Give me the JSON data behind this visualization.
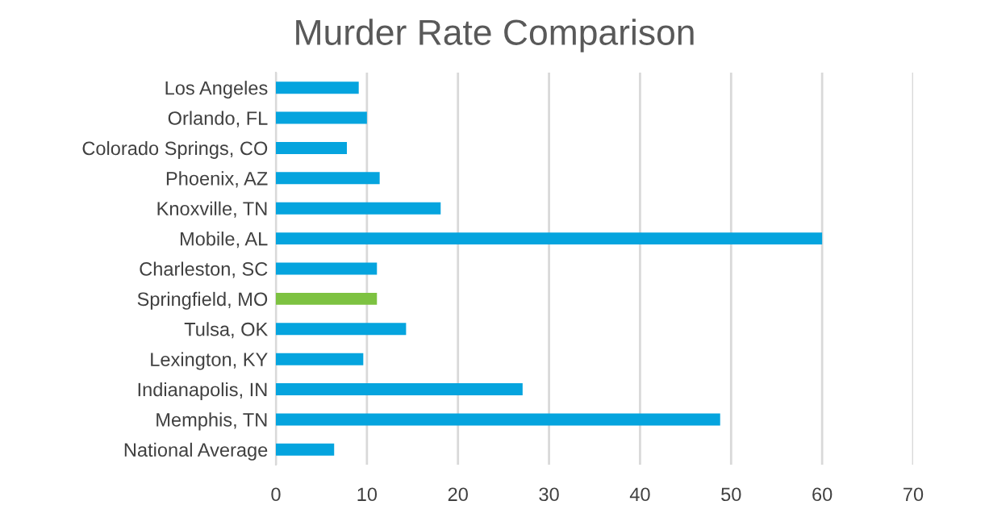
{
  "chart_data": {
    "type": "bar",
    "orientation": "horizontal",
    "title": "Murder Rate Comparison",
    "categories": [
      "Los Angeles",
      "Orlando, FL",
      "Colorado Springs, CO",
      "Phoenix, AZ",
      "Knoxville, TN",
      "Mobile, AL",
      "Charleston, SC",
      "Springfield, MO",
      "Tulsa, OK",
      "Lexington, KY",
      "Indianapolis, IN",
      "Memphis, TN",
      "National Average"
    ],
    "values": [
      9.1,
      10.0,
      7.8,
      11.4,
      18.1,
      60.0,
      11.1,
      11.1,
      14.3,
      9.6,
      27.1,
      48.8,
      6.4
    ],
    "colors": [
      "#05a4de",
      "#05a4de",
      "#05a4de",
      "#05a4de",
      "#05a4de",
      "#05a4de",
      "#05a4de",
      "#7dc241",
      "#05a4de",
      "#05a4de",
      "#05a4de",
      "#05a4de",
      "#05a4de"
    ],
    "xlim": [
      0,
      70
    ],
    "xticks": [
      0,
      10,
      20,
      30,
      40,
      50,
      60,
      70
    ],
    "grid": "x",
    "legend": false
  }
}
